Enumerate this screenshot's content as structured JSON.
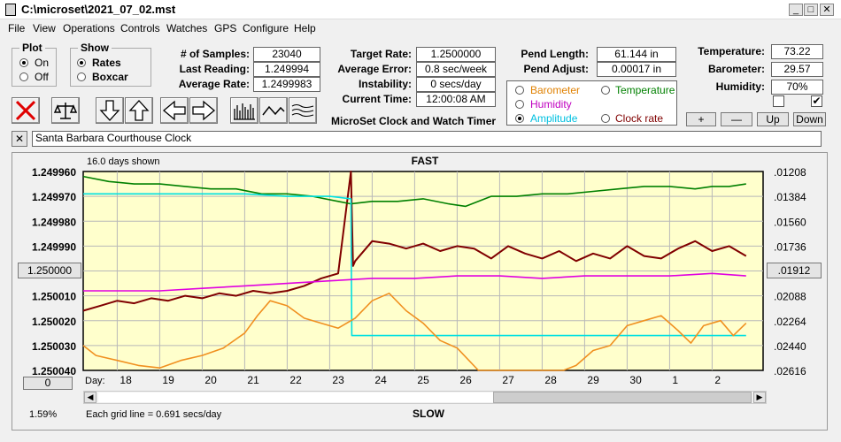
{
  "window": {
    "title": "C:\\microset\\2021_07_02.mst"
  },
  "menu": [
    "File",
    "View",
    "Operations",
    "Controls",
    "Watches",
    "GPS",
    "Configure",
    "Help"
  ],
  "plot_group": {
    "title": "Plot",
    "on": "On",
    "off": "Off"
  },
  "show_group": {
    "title": "Show",
    "rates": "Rates",
    "boxcar": "Boxcar"
  },
  "stats": {
    "samples_label": "# of Samples:",
    "samples": "23040",
    "last_label": "Last Reading:",
    "last": "1.249994",
    "avg_label": "Average Rate:",
    "avg": "1.2499983",
    "target_label": "Target Rate:",
    "target": "1.2500000",
    "avgerr_label": "Average Error:",
    "avgerr": "0.8 sec/week",
    "instab_label": "Instability:",
    "instab": "0 secs/day",
    "time_label": "Current Time:",
    "time": "12:00:08 AM",
    "pendlen_label": "Pend Length:",
    "pendlen": "61.144 in",
    "pendadj_label": "Pend Adjust:",
    "pendadj": "0.00017 in",
    "temp_label": "Temperature:",
    "temp": "73.22",
    "baro_label": "Barometer:",
    "baro": "29.57",
    "hum_label": "Humidity:",
    "hum": "70%"
  },
  "app_label": "MicroSet Clock and Watch Timer",
  "series_select": {
    "barometer": "Barometer",
    "temperature": "Temperature",
    "humidity": "Humidity",
    "amplitude": "Amplitude",
    "clockrate": "Clock rate"
  },
  "adjust_buttons": {
    "plus": "+",
    "minus": "—",
    "up": "Up",
    "down": "Down"
  },
  "clock_name": "Santa Barbara Courthouse Clock",
  "chart_data": {
    "type": "line",
    "title": "FAST",
    "bottom_label": "SLOW",
    "days_shown": "16.0 days shown",
    "grid_note": "Each grid line = 0.691 secs/day",
    "percent": "1.59%",
    "day_label": "Day:",
    "left_button": "1.250000",
    "right_button": ".01912",
    "zero_button": "0",
    "y_left_ticks": [
      "1.249960",
      "1.249970",
      "1.249980",
      "1.249990",
      "1.250000",
      "1.250010",
      "1.250020",
      "1.250030",
      "1.250040"
    ],
    "y_right_ticks": [
      ".01208",
      ".01384",
      ".01560",
      ".01736",
      ".01912",
      ".02088",
      ".02264",
      ".02440",
      ".02616"
    ],
    "ylim": [
      1.24996,
      1.25004
    ],
    "x_days": [
      "18",
      "19",
      "20",
      "21",
      "22",
      "23",
      "24",
      "25",
      "26",
      "27",
      "28",
      "29",
      "30",
      "1",
      "2"
    ],
    "x_range": [
      17.2,
      33.2
    ],
    "grid": true,
    "series": [
      {
        "color": "#800000",
        "x": [
          17.2,
          17.6,
          18,
          18.4,
          18.8,
          19.2,
          19.6,
          20,
          20.4,
          20.8,
          21.2,
          21.6,
          22,
          22.4,
          22.8,
          23.2,
          23.5,
          23.55,
          23.6,
          24,
          24.4,
          24.8,
          25.2,
          25.6,
          26,
          26.4,
          26.8,
          27.2,
          27.6,
          28,
          28.4,
          28.8,
          29.2,
          29.6,
          30,
          30.4,
          30.8,
          31.2,
          31.6,
          32,
          32.4,
          32.8
        ],
        "y": [
          1.250016,
          1.250014,
          1.250012,
          1.250013,
          1.250011,
          1.250012,
          1.25001,
          1.250011,
          1.250009,
          1.25001,
          1.250008,
          1.250009,
          1.250008,
          1.250006,
          1.250003,
          1.250001,
          1.24996,
          1.249998,
          1.249996,
          1.249988,
          1.249989,
          1.249991,
          1.249989,
          1.249992,
          1.24999,
          1.249991,
          1.249995,
          1.24999,
          1.249993,
          1.249995,
          1.249992,
          1.249996,
          1.249993,
          1.249995,
          1.24999,
          1.249994,
          1.249995,
          1.249991,
          1.249988,
          1.249992,
          1.24999,
          1.249994
        ]
      },
      {
        "color": "#008000",
        "x": [
          17.2,
          17.8,
          18.4,
          19,
          19.6,
          20.2,
          20.8,
          21.4,
          22,
          22.6,
          23.2,
          23.5,
          24,
          24.6,
          25.2,
          25.8,
          26.2,
          26.8,
          27.4,
          28,
          28.6,
          29.2,
          29.8,
          30.4,
          31,
          31.6,
          32,
          32.4,
          32.8
        ],
        "y": [
          1.249962,
          1.249964,
          1.249965,
          1.249965,
          1.249966,
          1.249967,
          1.249967,
          1.249969,
          1.249969,
          1.24997,
          1.249972,
          1.249973,
          1.249972,
          1.249972,
          1.249971,
          1.249973,
          1.249974,
          1.24997,
          1.24997,
          1.249969,
          1.249969,
          1.249968,
          1.249967,
          1.249966,
          1.249966,
          1.249967,
          1.249966,
          1.249966,
          1.249965
        ]
      },
      {
        "color": "#00e0e0",
        "x": [
          17.2,
          18,
          19,
          20,
          21,
          22,
          23,
          23.5,
          23.52,
          24,
          25,
          26,
          27,
          28,
          29,
          30,
          31,
          32,
          32.8
        ],
        "y": [
          1.249969,
          1.249969,
          1.249969,
          1.249969,
          1.249969,
          1.24997,
          1.24997,
          1.249971,
          1.250026,
          1.250026,
          1.250026,
          1.250026,
          1.250026,
          1.250026,
          1.250026,
          1.250026,
          1.250026,
          1.250026,
          1.250026
        ]
      },
      {
        "color": "#e000e0",
        "x": [
          17.2,
          18,
          19,
          20,
          21,
          22,
          23,
          24,
          25,
          26,
          27,
          28,
          29,
          30,
          31,
          32,
          32.8
        ],
        "y": [
          1.250008,
          1.250008,
          1.250008,
          1.250007,
          1.250006,
          1.250005,
          1.250004,
          1.250003,
          1.250003,
          1.250002,
          1.250002,
          1.250003,
          1.250002,
          1.250002,
          1.250002,
          1.250001,
          1.250002
        ]
      },
      {
        "color": "#f09020",
        "x": [
          17.2,
          17.5,
          18,
          18.5,
          19,
          19.5,
          20,
          20.5,
          21,
          21.3,
          21.6,
          22,
          22.4,
          22.8,
          23.2,
          23.6,
          24,
          24.4,
          24.8,
          25.2,
          25.6,
          26,
          26.5,
          27,
          27.5,
          28,
          28.5,
          28.8,
          29.2,
          29.6,
          30,
          30.4,
          30.8,
          31.2,
          31.5,
          31.8,
          32.2,
          32.5,
          32.8
        ],
        "y": [
          1.25003,
          1.250034,
          1.250036,
          1.250038,
          1.250039,
          1.250036,
          1.250034,
          1.250031,
          1.250025,
          1.250018,
          1.250012,
          1.250014,
          1.250019,
          1.250021,
          1.250023,
          1.250019,
          1.250012,
          1.250009,
          1.250016,
          1.250021,
          1.250028,
          1.250031,
          1.25004,
          1.25004,
          1.25004,
          1.25004,
          1.25004,
          1.250038,
          1.250032,
          1.25003,
          1.250022,
          1.25002,
          1.250018,
          1.250024,
          1.250029,
          1.250022,
          1.25002,
          1.250026,
          1.250021
        ]
      }
    ]
  }
}
